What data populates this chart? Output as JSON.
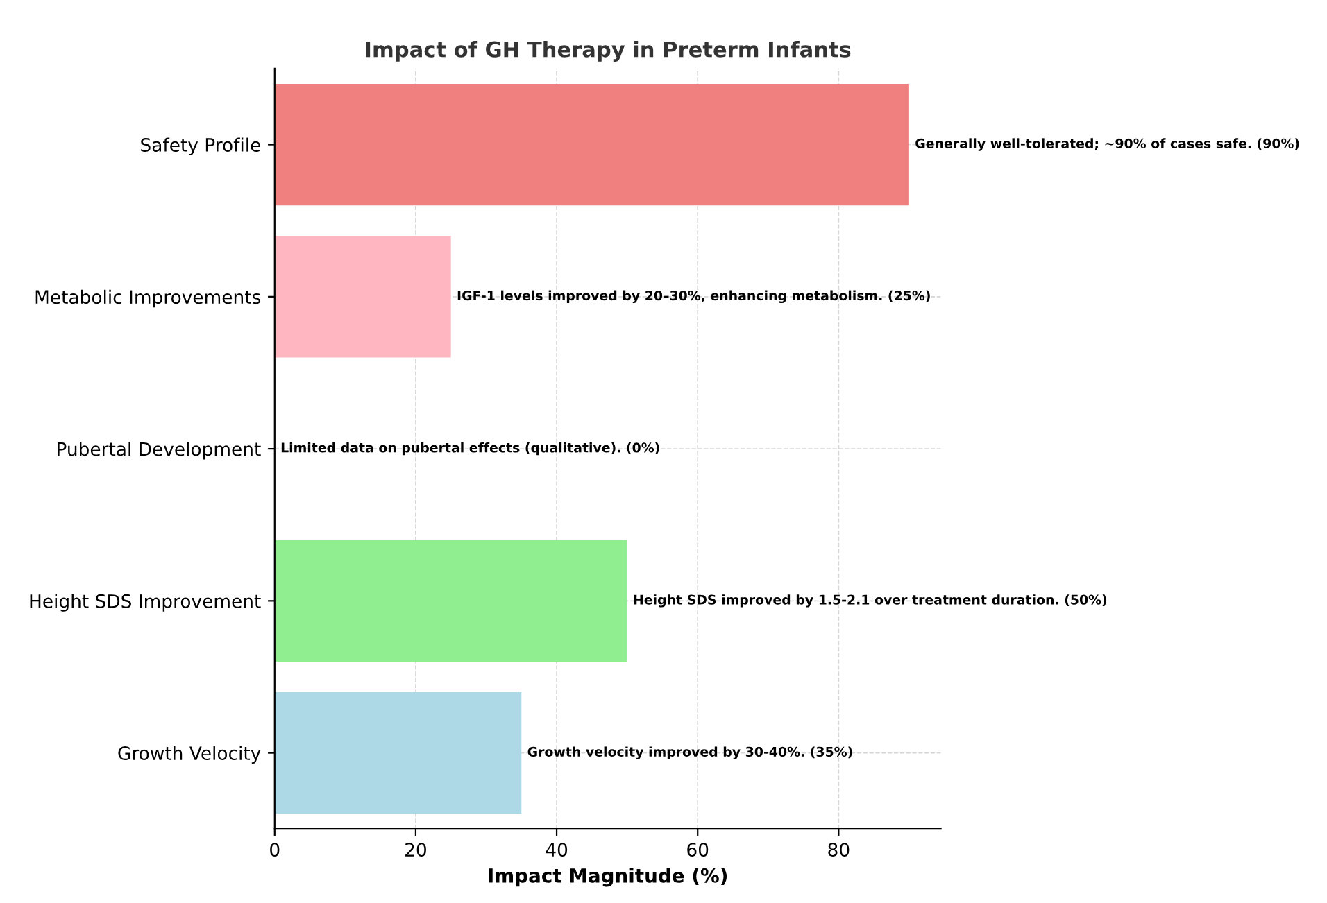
{
  "chart_data": {
    "type": "bar",
    "orientation": "horizontal",
    "title": "Impact of GH Therapy in Preterm Infants",
    "xlabel": "Impact Magnitude (%)",
    "categories": [
      "Safety Profile",
      "Metabolic Improvements",
      "Pubertal Development",
      "Height SDS Improvement",
      "Growth Velocity"
    ],
    "values": [
      90,
      25,
      0,
      50,
      35
    ],
    "colors": [
      "#f08080",
      "#ffb6c1",
      "#ffd700",
      "#90ee90",
      "#add8e6"
    ],
    "value_labels": [
      "Generally well-tolerated; ~90% of cases safe. (90%)",
      "IGF-1 levels improved by 20–30%, enhancing metabolism. (25%)",
      "Limited data on pubertal effects (qualitative). (0%)",
      "Height SDS improved by 1.5-2.1 over treatment duration. (50%)",
      "Growth velocity improved by 30-40%. (35%)"
    ],
    "xlim": [
      0,
      94.5
    ],
    "xticks": [
      0,
      20,
      40,
      60,
      80
    ],
    "grid": true
  }
}
